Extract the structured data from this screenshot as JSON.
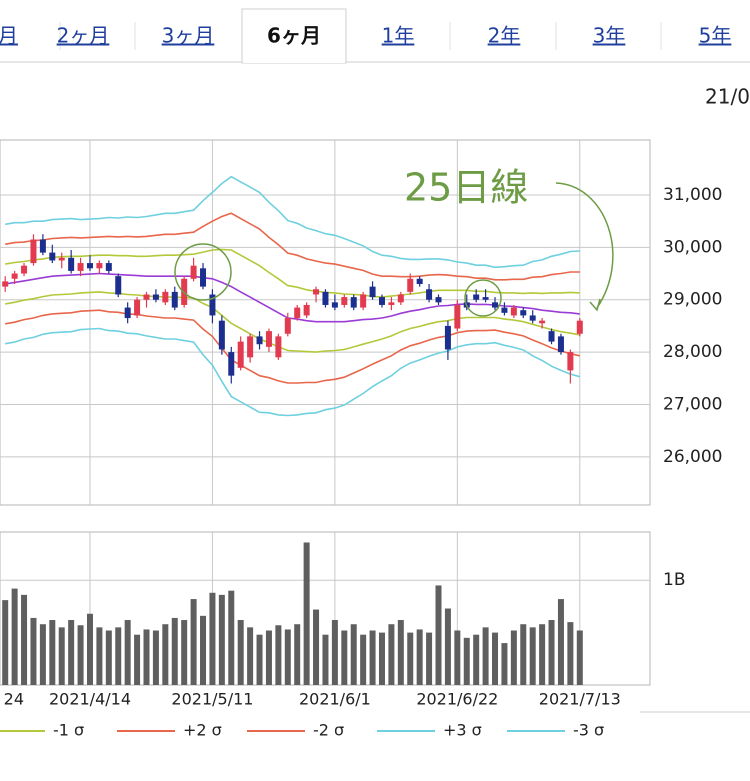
{
  "tabs": {
    "items": [
      "月",
      "2ヶ月",
      "3ヶ月",
      "6ヶ月",
      "1年",
      "2年",
      "3年",
      "5年"
    ],
    "active": 3
  },
  "date_partial": "21/0",
  "chart_data": {
    "type": "candlestick",
    "annotation": "25日線",
    "annotation_color": "#6e9c45",
    "x_label_left": "24",
    "categories": [
      null,
      null,
      null,
      null,
      null,
      null,
      null,
      null,
      null,
      "2021/4/14",
      null,
      null,
      null,
      null,
      null,
      null,
      null,
      null,
      null,
      null,
      null,
      null,
      "2021/5/11",
      null,
      null,
      null,
      null,
      null,
      null,
      null,
      null,
      null,
      null,
      null,
      null,
      "2021/6/1",
      null,
      null,
      null,
      null,
      null,
      null,
      null,
      null,
      null,
      null,
      null,
      null,
      "2021/6/22",
      null,
      null,
      null,
      null,
      null,
      null,
      null,
      null,
      null,
      null,
      null,
      null,
      "2021/7/13"
    ],
    "open": [
      29250,
      29400,
      29500,
      29700,
      30150,
      29900,
      29750,
      29800,
      29550,
      29700,
      29600,
      29700,
      29450,
      28850,
      28700,
      29000,
      29100,
      28950,
      29150,
      28900,
      29400,
      29600,
      29100,
      28600,
      28000,
      27700,
      27900,
      28300,
      28100,
      27900,
      28350,
      28650,
      28700,
      29100,
      29150,
      28950,
      28900,
      29050,
      28850,
      29250,
      29050,
      28900,
      28950,
      29150,
      29400,
      29200,
      29050,
      28500,
      28450,
      28950,
      29100,
      29050,
      28950,
      28850,
      28700,
      28800,
      28700,
      28550,
      28400,
      28300,
      27650,
      28350
    ],
    "high": [
      29450,
      29550,
      29700,
      30250,
      30250,
      30050,
      29900,
      29950,
      29800,
      29850,
      29750,
      29750,
      29500,
      28950,
      29050,
      29150,
      29200,
      29200,
      29250,
      29450,
      29800,
      29700,
      29200,
      28700,
      28100,
      28300,
      28350,
      28400,
      28450,
      28350,
      28750,
      28900,
      28950,
      29250,
      29200,
      29100,
      29100,
      29100,
      29150,
      29350,
      29100,
      29050,
      29150,
      29500,
      29450,
      29300,
      29100,
      28600,
      29000,
      29100,
      29200,
      29200,
      29050,
      28950,
      28900,
      28850,
      28800,
      28650,
      28450,
      28350,
      28050,
      28650
    ],
    "low": [
      29150,
      29300,
      29450,
      29650,
      29850,
      29700,
      29600,
      29500,
      29450,
      29550,
      29500,
      29500,
      29050,
      28550,
      28650,
      28850,
      28950,
      28900,
      28800,
      28850,
      29350,
      29200,
      28550,
      27950,
      27400,
      27650,
      27800,
      28050,
      28000,
      27850,
      28300,
      28600,
      28650,
      28950,
      28850,
      28800,
      28850,
      28800,
      28800,
      29000,
      28850,
      28800,
      28900,
      29100,
      29250,
      28950,
      28900,
      27850,
      28400,
      28800,
      28950,
      28950,
      28800,
      28700,
      28650,
      28650,
      28550,
      28450,
      28150,
      27950,
      27400,
      28300
    ],
    "close": [
      29350,
      29500,
      29650,
      30150,
      29900,
      29750,
      29800,
      29550,
      29700,
      29600,
      29700,
      29550,
      29100,
      28650,
      29000,
      29100,
      29000,
      29150,
      28850,
      29400,
      29650,
      29250,
      28700,
      28050,
      27550,
      28200,
      28300,
      28150,
      28400,
      28300,
      28650,
      28850,
      28900,
      29200,
      28900,
      28850,
      29050,
      28850,
      29100,
      29050,
      28900,
      28950,
      29100,
      29400,
      29300,
      29000,
      28950,
      28050,
      28900,
      28850,
      29000,
      29000,
      28850,
      28750,
      28850,
      28700,
      28600,
      28600,
      28200,
      28000,
      28000,
      28600
    ],
    "up_color": "#e23a4e",
    "down_color": "#1c2f8f",
    "ylim": [
      25080,
      32050
    ],
    "yticks": [
      {
        "value": 26000,
        "label": "26,000"
      },
      {
        "value": 27000,
        "label": "27,000"
      },
      {
        "value": 28000,
        "label": "28,000"
      },
      {
        "value": 29000,
        "label": "29,000"
      },
      {
        "value": 30000,
        "label": "30,000"
      },
      {
        "value": 31000,
        "label": "31,000"
      }
    ],
    "grid": true,
    "legend": "bottom",
    "series": [
      {
        "color": "#9b3bd6",
        "values": [
          29300,
          29330,
          29360,
          29390,
          29420,
          29450,
          29460,
          29470,
          29480,
          29490,
          29500,
          29490,
          29480,
          29470,
          29460,
          29450,
          29450,
          29450,
          29450,
          29450,
          29450,
          29420,
          29400,
          29330,
          29250,
          29150,
          29050,
          28950,
          28850,
          28750,
          28650,
          28630,
          28600,
          28580,
          28580,
          28580,
          28580,
          28600,
          28620,
          28630,
          28650,
          28690,
          28740,
          28780,
          28810,
          28850,
          28880,
          28890,
          28910,
          28920,
          28910,
          28910,
          28900,
          28880,
          28870,
          28850,
          28830,
          28800,
          28780,
          28760,
          28750,
          28730
        ]
      },
      {
        "color": "#b5c83a",
        "values": [
          29680,
          29710,
          29730,
          29760,
          29780,
          29810,
          29820,
          29830,
          29830,
          29840,
          29850,
          29850,
          29840,
          29840,
          29830,
          29830,
          29840,
          29850,
          29850,
          29860,
          29870,
          29910,
          29950,
          29960,
          29950,
          29850,
          29750,
          29650,
          29520,
          29400,
          29270,
          29240,
          29190,
          29160,
          29140,
          29130,
          29110,
          29100,
          29090,
          29060,
          29050,
          29070,
          29090,
          29110,
          29130,
          29160,
          29180,
          29180,
          29180,
          29180,
          29160,
          29160,
          29140,
          29130,
          29130,
          29120,
          29130,
          29120,
          29130,
          29130,
          29140,
          29130
        ]
      },
      {
        "name": "-1 σ",
        "color": "#b5c83a",
        "values": [
          28920,
          28950,
          28990,
          29020,
          29060,
          29090,
          29100,
          29110,
          29130,
          29140,
          29150,
          29130,
          29120,
          29100,
          29090,
          29070,
          29060,
          29050,
          29050,
          29040,
          29030,
          28930,
          28850,
          28700,
          28550,
          28450,
          28350,
          28250,
          28180,
          28100,
          28030,
          28020,
          28010,
          28000,
          28020,
          28030,
          28050,
          28100,
          28150,
          28200,
          28250,
          28310,
          28390,
          28450,
          28490,
          28540,
          28580,
          28600,
          28640,
          28660,
          28660,
          28660,
          28660,
          28630,
          28610,
          28580,
          28530,
          28480,
          28430,
          28390,
          28360,
          28330
        ]
      },
      {
        "name": "+2 σ",
        "color": "#e8664a",
        "values": [
          30060,
          30090,
          30100,
          30130,
          30140,
          30170,
          30180,
          30190,
          30180,
          30190,
          30200,
          30210,
          30200,
          30210,
          30200,
          30210,
          30230,
          30250,
          30250,
          30270,
          30290,
          30400,
          30500,
          30590,
          30650,
          30550,
          30450,
          30350,
          30190,
          30050,
          29890,
          29850,
          29780,
          29740,
          29700,
          29680,
          29640,
          29600,
          29560,
          29490,
          29450,
          29450,
          29440,
          29440,
          29450,
          29470,
          29480,
          29470,
          29450,
          29440,
          29410,
          29410,
          29380,
          29380,
          29390,
          29390,
          29430,
          29440,
          29480,
          29500,
          29530,
          29530
        ]
      },
      {
        "name": "-2 σ",
        "color": "#e8664a",
        "values": [
          28540,
          28570,
          28620,
          28650,
          28700,
          28730,
          28740,
          28750,
          28780,
          28790,
          28800,
          28770,
          28760,
          28730,
          28720,
          28690,
          28670,
          28650,
          28650,
          28630,
          28610,
          28440,
          28300,
          28070,
          27850,
          27750,
          27650,
          27550,
          27510,
          27450,
          27410,
          27410,
          27420,
          27420,
          27460,
          27480,
          27520,
          27600,
          27680,
          27770,
          27850,
          27930,
          28040,
          28120,
          28170,
          28230,
          28280,
          28310,
          28370,
          28400,
          28410,
          28410,
          28420,
          28380,
          28350,
          28310,
          28230,
          28160,
          28080,
          28020,
          27970,
          27930
        ]
      },
      {
        "name": "+3 σ",
        "color": "#6fd0df",
        "values": [
          30440,
          30470,
          30470,
          30500,
          30500,
          30530,
          30540,
          30550,
          30530,
          30540,
          30550,
          30570,
          30560,
          30580,
          30570,
          30590,
          30620,
          30650,
          30650,
          30680,
          30710,
          30890,
          31050,
          31220,
          31350,
          31250,
          31150,
          31050,
          30860,
          30700,
          30510,
          30460,
          30370,
          30320,
          30260,
          30230,
          30170,
          30100,
          30030,
          29920,
          29850,
          29830,
          29790,
          29770,
          29770,
          29780,
          29780,
          29760,
          29720,
          29700,
          29660,
          29660,
          29620,
          29630,
          29650,
          29660,
          29730,
          29760,
          29830,
          29870,
          29920,
          29930
        ]
      },
      {
        "name": "-3 σ",
        "color": "#6fd0df",
        "values": [
          28160,
          28190,
          28250,
          28280,
          28340,
          28370,
          28380,
          28390,
          28430,
          28440,
          28450,
          28410,
          28400,
          28360,
          28350,
          28310,
          28280,
          28250,
          28250,
          28220,
          28190,
          27950,
          27750,
          27440,
          27150,
          27050,
          26950,
          26850,
          26840,
          26800,
          26790,
          26800,
          26830,
          26840,
          26900,
          26930,
          26990,
          27100,
          27210,
          27340,
          27450,
          27550,
          27690,
          27790,
          27850,
          27920,
          27980,
          28020,
          28100,
          28140,
          28160,
          28160,
          28180,
          28130,
          28090,
          28040,
          27930,
          27840,
          27730,
          27650,
          27580,
          27530
        ]
      }
    ],
    "volume": {
      "type": "bar",
      "color": "#5f5f5f",
      "ylim": [
        0,
        1.46
      ],
      "yticks": [
        {
          "value": 1,
          "label": "1B"
        }
      ],
      "grid": true,
      "values": [
        0.81,
        0.92,
        0.86,
        0.64,
        0.58,
        0.62,
        0.55,
        0.62,
        0.57,
        0.68,
        0.55,
        0.52,
        0.55,
        0.62,
        0.48,
        0.53,
        0.52,
        0.58,
        0.64,
        0.62,
        0.82,
        0.66,
        0.88,
        0.86,
        0.9,
        0.62,
        0.55,
        0.48,
        0.52,
        0.57,
        0.53,
        0.58,
        1.36,
        0.72,
        0.48,
        0.62,
        0.52,
        0.58,
        0.48,
        0.52,
        0.5,
        0.58,
        0.62,
        0.5,
        0.53,
        0.5,
        0.95,
        0.73,
        0.52,
        0.45,
        0.48,
        0.55,
        0.5,
        0.4,
        0.52,
        0.58,
        0.55,
        0.58,
        0.62,
        0.82,
        0.6,
        0.52
      ]
    }
  }
}
